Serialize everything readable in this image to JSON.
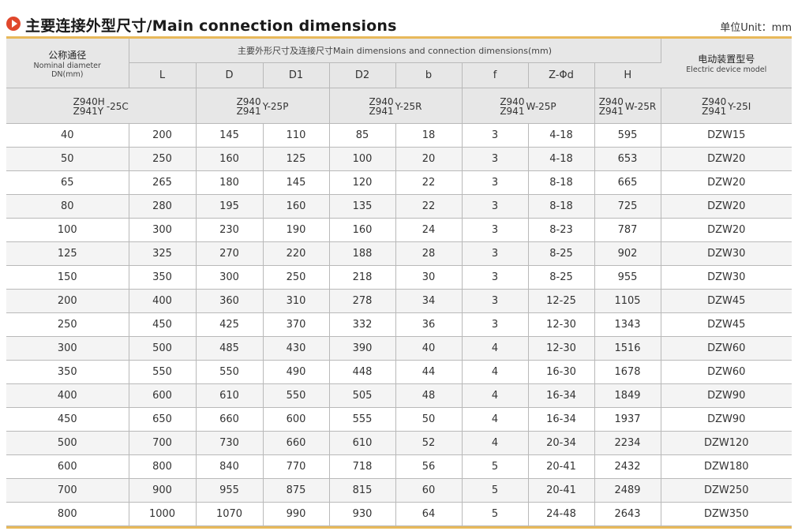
{
  "title": "主要连接外型尺寸/Main connection dimensions",
  "unit": "单位Unit：mm",
  "header": {
    "dn_cn": "公称通径",
    "dn_en1": "Nominal diameter",
    "dn_en2": "DN(mm)",
    "main_dims": "主要外形尺寸及连接尺寸Main dimensions and connection dimensions(mm)",
    "elec_cn": "电动装置型号",
    "elec_en": "Electric device model",
    "cols": [
      "L",
      "D",
      "D1",
      "D2",
      "b",
      "f",
      "Z-Φd",
      "H"
    ]
  },
  "models": [
    {
      "a": "Z940H",
      "b": "Z941Y",
      "suffix": "-25C"
    },
    {
      "a": "Z940",
      "b": "Z941",
      "suffix": "Y-25P"
    },
    {
      "a": "Z940",
      "b": "Z941",
      "suffix": "Y-25R"
    },
    {
      "a": "Z940",
      "b": "Z941",
      "suffix": "W-25P"
    },
    {
      "a": "Z940",
      "b": "Z941",
      "suffix": "W-25R"
    },
    {
      "a": "Z940",
      "b": "Z941",
      "suffix": "Y-25I"
    }
  ],
  "rows": [
    [
      "40",
      "200",
      "145",
      "110",
      "85",
      "18",
      "3",
      "4-18",
      "595",
      "DZW15"
    ],
    [
      "50",
      "250",
      "160",
      "125",
      "100",
      "20",
      "3",
      "4-18",
      "653",
      "DZW20"
    ],
    [
      "65",
      "265",
      "180",
      "145",
      "120",
      "22",
      "3",
      "8-18",
      "665",
      "DZW20"
    ],
    [
      "80",
      "280",
      "195",
      "160",
      "135",
      "22",
      "3",
      "8-18",
      "725",
      "DZW20"
    ],
    [
      "100",
      "300",
      "230",
      "190",
      "160",
      "24",
      "3",
      "8-23",
      "787",
      "DZW20"
    ],
    [
      "125",
      "325",
      "270",
      "220",
      "188",
      "28",
      "3",
      "8-25",
      "902",
      "DZW30"
    ],
    [
      "150",
      "350",
      "300",
      "250",
      "218",
      "30",
      "3",
      "8-25",
      "955",
      "DZW30"
    ],
    [
      "200",
      "400",
      "360",
      "310",
      "278",
      "34",
      "3",
      "12-25",
      "1105",
      "DZW45"
    ],
    [
      "250",
      "450",
      "425",
      "370",
      "332",
      "36",
      "3",
      "12-30",
      "1343",
      "DZW45"
    ],
    [
      "300",
      "500",
      "485",
      "430",
      "390",
      "40",
      "4",
      "12-30",
      "1516",
      "DZW60"
    ],
    [
      "350",
      "550",
      "550",
      "490",
      "448",
      "44",
      "4",
      "16-30",
      "1678",
      "DZW60"
    ],
    [
      "400",
      "600",
      "610",
      "550",
      "505",
      "48",
      "4",
      "16-34",
      "1849",
      "DZW90"
    ],
    [
      "450",
      "650",
      "660",
      "600",
      "555",
      "50",
      "4",
      "16-34",
      "1937",
      "DZW90"
    ],
    [
      "500",
      "700",
      "730",
      "660",
      "610",
      "52",
      "4",
      "20-34",
      "2234",
      "DZW120"
    ],
    [
      "600",
      "800",
      "840",
      "770",
      "718",
      "56",
      "5",
      "20-41",
      "2432",
      "DZW180"
    ],
    [
      "700",
      "900",
      "955",
      "875",
      "815",
      "60",
      "5",
      "20-41",
      "2489",
      "DZW250"
    ],
    [
      "800",
      "1000",
      "1070",
      "990",
      "930",
      "64",
      "5",
      "24-48",
      "2643",
      "DZW350"
    ]
  ]
}
